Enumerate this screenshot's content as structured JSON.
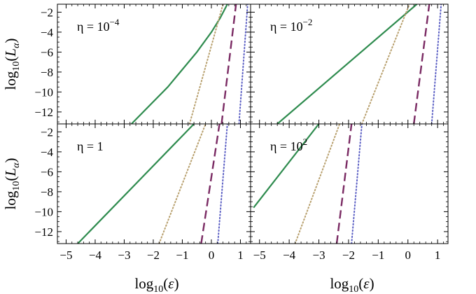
{
  "chart_data": {
    "type": "line",
    "xlabel": "log10(ε)",
    "ylabel": "log10(Lα)",
    "xlim": [
      -5.3,
      1.35
    ],
    "ylim": [
      -13.2,
      -1.2
    ],
    "xticks": [
      "−5",
      "−4",
      "−3",
      "−2",
      "−1",
      "0",
      "1"
    ],
    "xtick_values": [
      -5,
      -4,
      -3,
      -2,
      -1,
      0,
      1
    ],
    "yticks": [
      "−2",
      "−4",
      "−6",
      "−8",
      "−10",
      "−12"
    ],
    "ytick_values": [
      -2,
      -4,
      -6,
      -8,
      -10,
      -12
    ],
    "grid": false,
    "legend": "none",
    "colors": {
      "green": "#2e8b4e",
      "tan": "#b8a06e",
      "purple": "#7a2a63",
      "blue": "#5b5fc4"
    },
    "panels": [
      {
        "label_parts": [
          "η = 10",
          "−4"
        ],
        "label_html_pos": "top-left",
        "series": [
          {
            "style": "solid",
            "color": "green",
            "x": [
              -2.75,
              -1.5,
              -0.5,
              0.0,
              0.3,
              0.55
            ],
            "y": [
              -13.2,
              -9.5,
              -6.0,
              -4.0,
              -2.6,
              -1.2
            ]
          },
          {
            "style": "dotted",
            "color": "tan",
            "x": [
              -0.75,
              0.4
            ],
            "y": [
              -13.2,
              -1.2
            ]
          },
          {
            "style": "dashed",
            "color": "purple",
            "x": [
              0.35,
              0.85
            ],
            "y": [
              -13.2,
              -1.2
            ]
          },
          {
            "style": "dotted",
            "color": "blue",
            "x": [
              0.95,
              1.25
            ],
            "y": [
              -13.2,
              -1.2
            ]
          }
        ]
      },
      {
        "label_parts": [
          "η = 10",
          "−2"
        ],
        "label_html_pos": "top-left",
        "series": [
          {
            "style": "solid",
            "color": "green",
            "x": [
              -4.4,
              0.3
            ],
            "y": [
              -13.2,
              -1.2
            ]
          },
          {
            "style": "dotted",
            "color": "tan",
            "x": [
              -1.55,
              0.05
            ],
            "y": [
              -13.2,
              -1.2
            ]
          },
          {
            "style": "dashed",
            "color": "purple",
            "x": [
              0.2,
              0.72
            ],
            "y": [
              -13.2,
              -1.2
            ]
          },
          {
            "style": "dotted",
            "color": "blue",
            "x": [
              0.8,
              1.12
            ],
            "y": [
              -13.2,
              -1.2
            ]
          }
        ]
      },
      {
        "label_parts": [
          "η = 1",
          ""
        ],
        "label_html_pos": "top-left",
        "series": [
          {
            "style": "solid",
            "color": "green",
            "x": [
              -4.6,
              -0.6
            ],
            "y": [
              -13.2,
              -1.2
            ]
          },
          {
            "style": "dotted",
            "color": "tan",
            "x": [
              -1.8,
              -0.2
            ],
            "y": [
              -13.2,
              -1.2
            ]
          },
          {
            "style": "dashed",
            "color": "purple",
            "x": [
              -0.35,
              0.28
            ],
            "y": [
              -13.2,
              -1.2
            ]
          },
          {
            "style": "dotted",
            "color": "blue",
            "x": [
              0.22,
              0.55
            ],
            "y": [
              -13.2,
              -1.2
            ]
          }
        ]
      },
      {
        "label_parts": [
          "η = 10",
          "2"
        ],
        "label_html_pos": "top-left",
        "series": [
          {
            "style": "solid",
            "color": "green",
            "x": [
              -5.2,
              -3.0
            ],
            "y": [
              -9.6,
              -1.2
            ]
          },
          {
            "style": "dotted",
            "color": "tan",
            "x": [
              -3.8,
              -2.3
            ],
            "y": [
              -13.2,
              -1.2
            ]
          },
          {
            "style": "dashed",
            "color": "purple",
            "x": [
              -2.4,
              -1.9
            ],
            "y": [
              -13.2,
              -1.2
            ]
          },
          {
            "style": "dotted",
            "color": "blue",
            "x": [
              -1.9,
              -1.55
            ],
            "y": [
              -13.2,
              -1.2
            ]
          }
        ]
      }
    ]
  }
}
